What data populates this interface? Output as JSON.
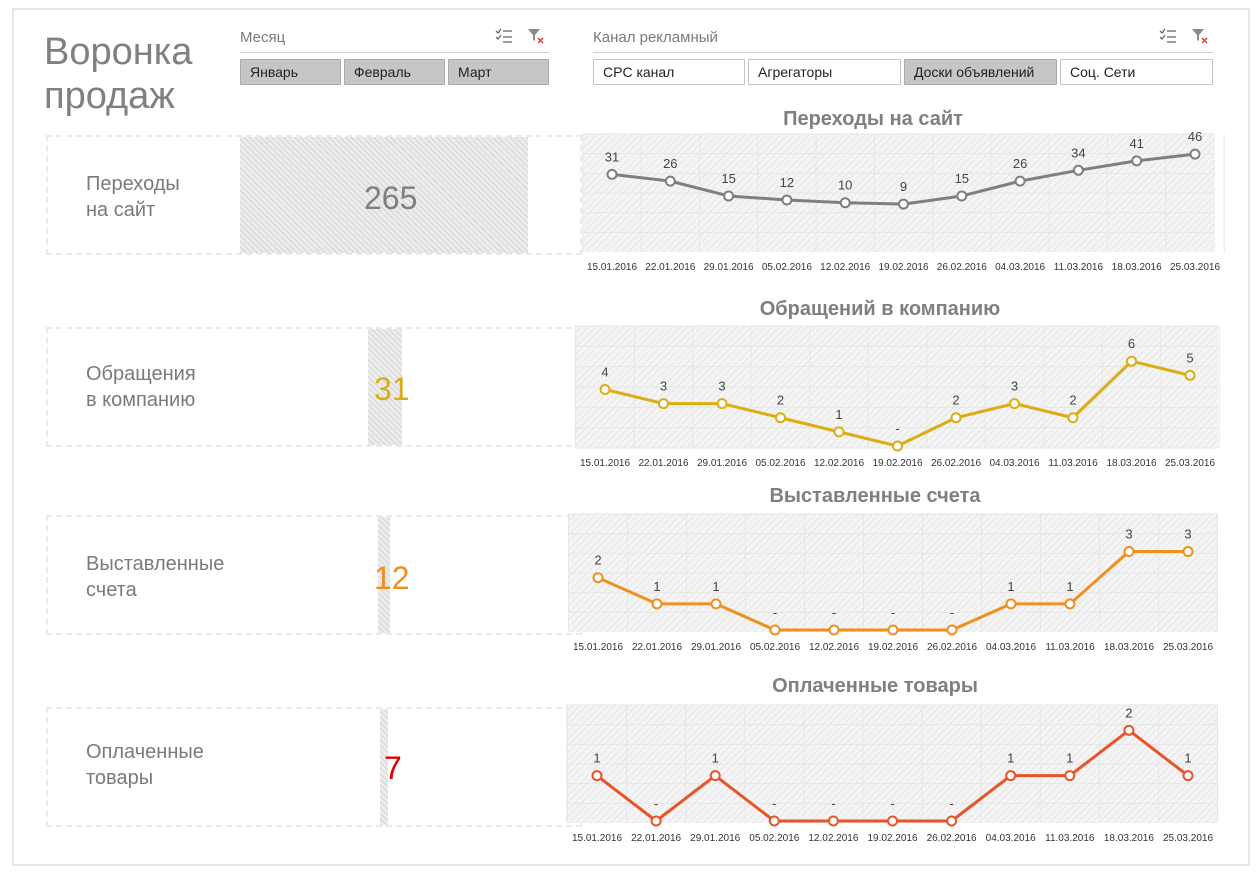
{
  "header": {
    "title_line1": "Воронка",
    "title_line2": "продаж"
  },
  "filters": {
    "month": {
      "title": "Месяц",
      "items": [
        {
          "label": "Январь",
          "selected": true
        },
        {
          "label": "Февраль",
          "selected": true
        },
        {
          "label": "Март",
          "selected": true
        }
      ]
    },
    "channel": {
      "title": "Канал рекламный",
      "items": [
        {
          "label": "CPC канал",
          "selected": false
        },
        {
          "label": "Агрегаторы",
          "selected": false
        },
        {
          "label": "Доски объявлений",
          "selected": true
        },
        {
          "label": "Соц. Сети",
          "selected": false
        }
      ]
    }
  },
  "cards": [
    {
      "label_line1": "Переходы",
      "label_line2": "на сайт",
      "value": "265",
      "color": "#7f7f7f"
    },
    {
      "label_line1": "Обращения",
      "label_line2": "в компанию",
      "value": "31",
      "color": "#dcad12"
    },
    {
      "label_line1": "Выставленные",
      "label_line2": "счета",
      "value": "12",
      "color": "#ef8f20"
    },
    {
      "label_line1": "Оплаченные",
      "label_line2": "товары",
      "value": "7",
      "color": "#e00000"
    }
  ],
  "chart_data": [
    {
      "type": "line",
      "title": "Переходы на сайт",
      "categories": [
        "15.01.2016",
        "22.01.2016",
        "29.01.2016",
        "05.02.2016",
        "12.02.2016",
        "19.02.2016",
        "26.02.2016",
        "04.03.2016",
        "11.03.2016",
        "18.03.2016",
        "25.03.2016"
      ],
      "values": [
        31,
        26,
        15,
        12,
        10,
        9,
        15,
        26,
        34,
        41,
        46
      ],
      "labels": [
        "31",
        "26",
        "15",
        "12",
        "10",
        "9",
        "15",
        "26",
        "34",
        "41",
        "46"
      ],
      "color": "#7f7f7f",
      "ylim": [
        -25,
        52
      ]
    },
    {
      "type": "line",
      "title": "Обращений в компанию",
      "categories": [
        "15.01.2016",
        "22.01.2016",
        "29.01.2016",
        "05.02.2016",
        "12.02.2016",
        "19.02.2016",
        "26.02.2016",
        "04.03.2016",
        "11.03.2016",
        "18.03.2016",
        "25.03.2016"
      ],
      "values": [
        4,
        3,
        3,
        2,
        1,
        0,
        2,
        3,
        2,
        6,
        5
      ],
      "labels": [
        "4",
        "3",
        "3",
        "2",
        "1",
        "-",
        "2",
        "3",
        "2",
        "6",
        "5"
      ],
      "color": "#dcad12",
      "ylim": [
        0,
        7.5
      ]
    },
    {
      "type": "line",
      "title": "Выставленные счета",
      "categories": [
        "15.01.2016",
        "22.01.2016",
        "29.01.2016",
        "05.02.2016",
        "12.02.2016",
        "19.02.2016",
        "26.02.2016",
        "04.03.2016",
        "11.03.2016",
        "18.03.2016",
        "25.03.2016"
      ],
      "values": [
        2,
        1,
        1,
        0,
        0,
        0,
        0,
        1,
        1,
        3,
        3
      ],
      "labels": [
        "2",
        "1",
        "1",
        "-",
        "-",
        "-",
        "-",
        "1",
        "1",
        "3",
        "3"
      ],
      "color": "#ef8f20",
      "ylim": [
        0,
        3.9
      ]
    },
    {
      "type": "line",
      "title": "Оплаченные товары",
      "categories": [
        "15.01.2016",
        "22.01.2016",
        "29.01.2016",
        "05.02.2016",
        "12.02.2016",
        "19.02.2016",
        "26.02.2016",
        "04.03.2016",
        "11.03.2016",
        "18.03.2016",
        "25.03.2016"
      ],
      "values": [
        1,
        0,
        1,
        0,
        0,
        0,
        0,
        1,
        1,
        2,
        1
      ],
      "labels": [
        "1",
        "-",
        "1",
        "-",
        "-",
        "-",
        "-",
        "1",
        "1",
        "2",
        "1"
      ],
      "color": "#e8542a",
      "ylim": [
        0,
        2.25
      ]
    }
  ]
}
